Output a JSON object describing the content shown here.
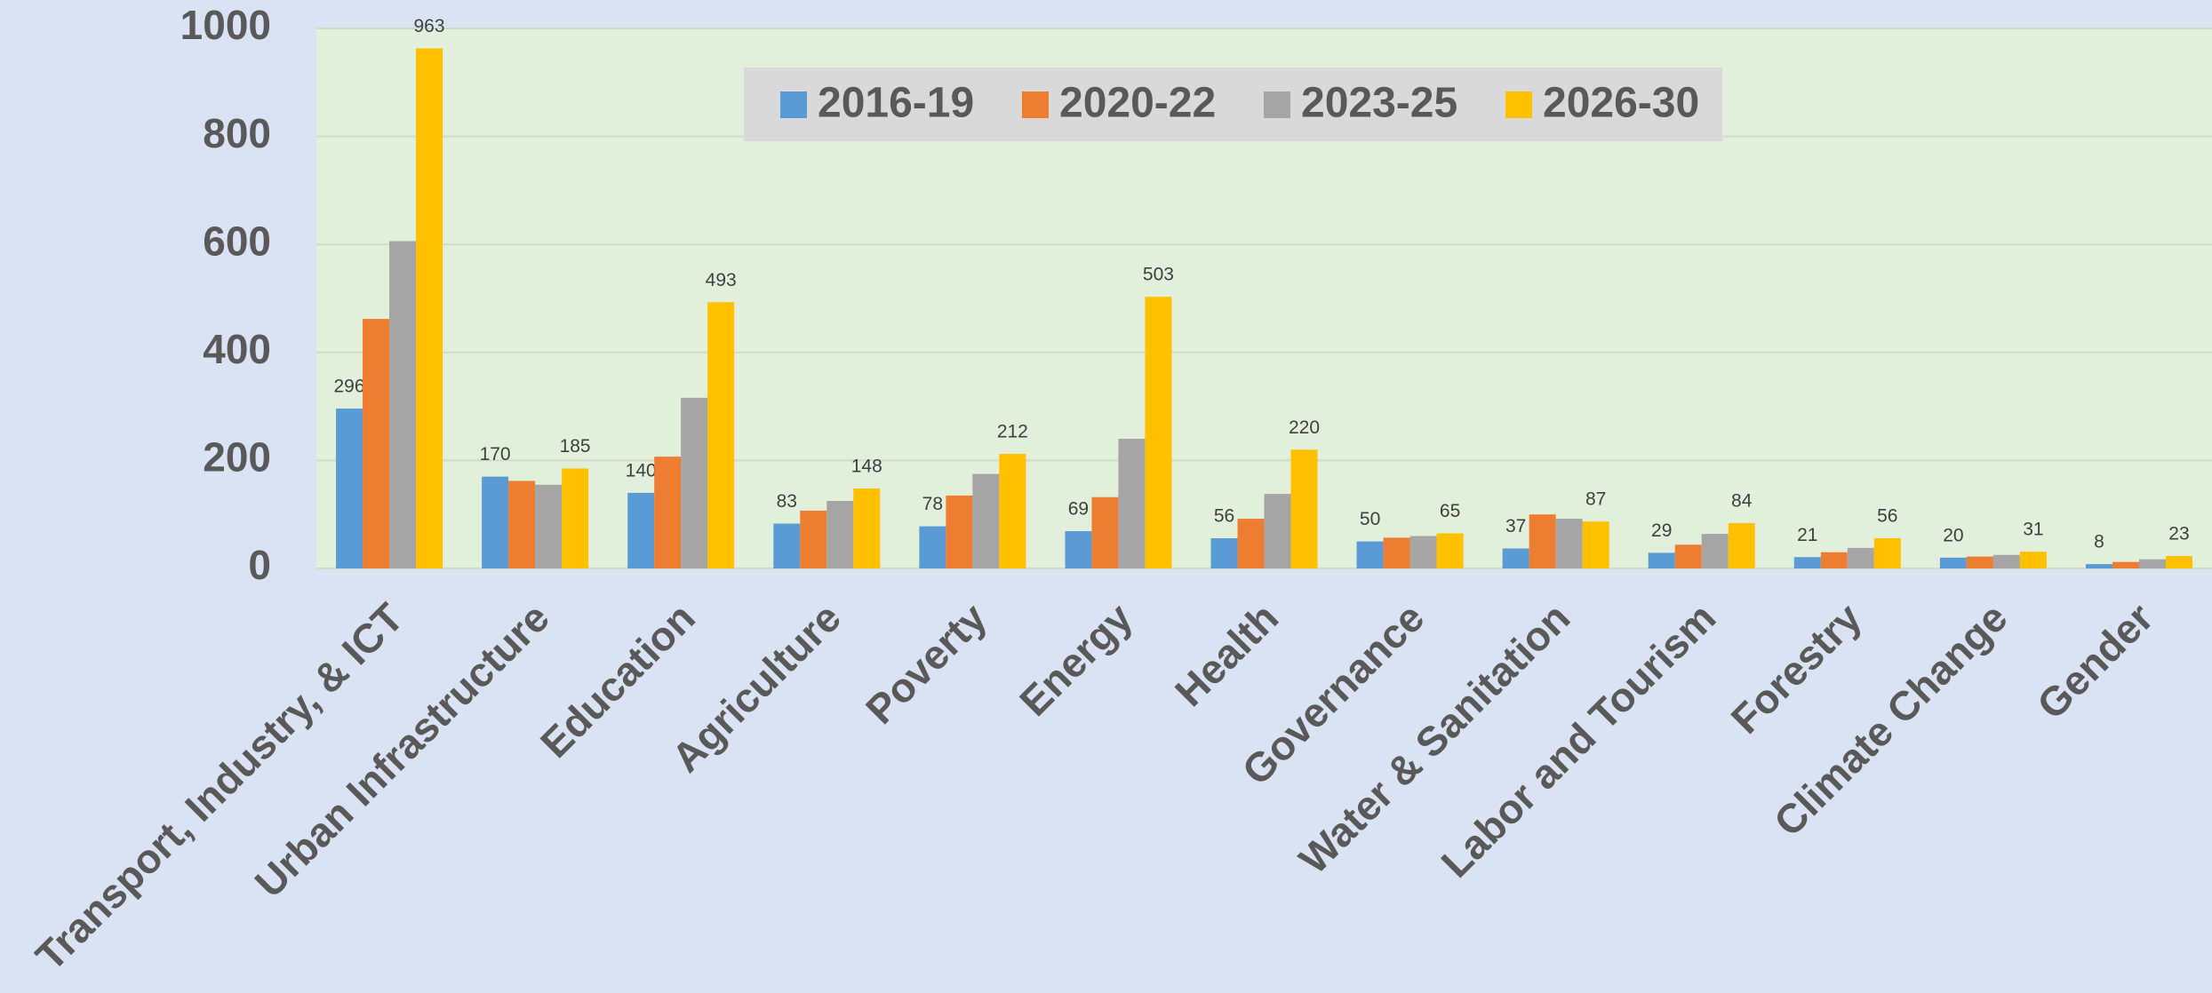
{
  "chart_data": {
    "type": "bar",
    "categories": [
      "Transport, Industry, & ICT",
      "Urban Infrastructure",
      "Education",
      "Agriculture",
      "Poverty",
      "Energy",
      "Health",
      "Governance",
      "Water & Sanitation",
      "Labor and Tourism",
      "Forestry",
      "Climate Change",
      "Gender"
    ],
    "series": [
      {
        "name": "2016-19",
        "color": "#5b9bd5",
        "show_labels": true,
        "values": [
          296,
          170,
          140,
          83,
          78,
          69,
          56,
          50,
          37,
          29,
          21,
          20,
          8
        ]
      },
      {
        "name": "2020-22",
        "color": "#ed7d31",
        "show_labels": false,
        "values": [
          462,
          162,
          207,
          107,
          135,
          132,
          92,
          57,
          100,
          44,
          30,
          22,
          12
        ]
      },
      {
        "name": "2023-25",
        "color": "#a5a5a5",
        "show_labels": false,
        "values": [
          606,
          155,
          316,
          125,
          175,
          240,
          138,
          60,
          92,
          64,
          38,
          25,
          17
        ]
      },
      {
        "name": "2026-30",
        "color": "#ffc000",
        "show_labels": true,
        "values": [
          963,
          185,
          493,
          148,
          212,
          503,
          220,
          65,
          87,
          84,
          56,
          31,
          23
        ]
      }
    ],
    "ylim": [
      0,
      1000
    ],
    "yticks": [
      0,
      200,
      400,
      600,
      800,
      1000
    ],
    "grid": true,
    "legend": "top"
  }
}
